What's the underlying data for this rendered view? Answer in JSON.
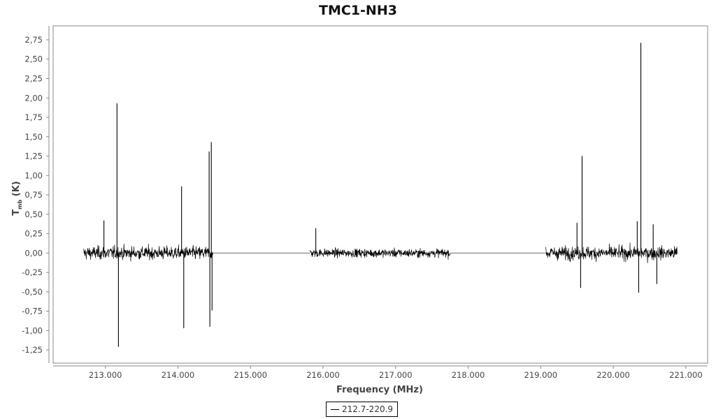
{
  "chart_data": {
    "type": "line",
    "title": "TMC1-NH3",
    "xlabel": "Frequency (MHz)",
    "ylabel_main": "T",
    "ylabel_sub": "mb",
    "ylabel_unit": " (K)",
    "xlim": [
      212.28,
      221.3
    ],
    "ylim": [
      -1.42,
      2.93
    ],
    "x_ticks": [
      213,
      214,
      215,
      216,
      217,
      218,
      219,
      220,
      221
    ],
    "x_tick_labels": [
      "213.000",
      "214.000",
      "215.000",
      "216.000",
      "217.000",
      "218.000",
      "219.000",
      "220.000",
      "221.000"
    ],
    "y_ticks": [
      -1.25,
      -1.0,
      -0.75,
      -0.5,
      -0.25,
      0,
      0.25,
      0.5,
      0.75,
      1.0,
      1.25,
      1.5,
      1.75,
      2.0,
      2.25,
      2.5,
      2.75
    ],
    "y_tick_labels": [
      "-1,25",
      "-1,00",
      "-0,75",
      "-0,50",
      "-0,25",
      "0,00",
      "0,25",
      "0,50",
      "0,75",
      "1,00",
      "1,25",
      "1,50",
      "1,75",
      "2,00",
      "2,25",
      "2,50",
      "2,75"
    ],
    "grid": false,
    "legend_position": "bottom-center",
    "color": "#000000",
    "series": [
      {
        "name": "212.7-220.9",
        "segments": [
          {
            "x_start": 212.7,
            "x_end": 214.48,
            "noise_rms": 0.11,
            "peak": 0.33
          },
          {
            "x_start": 215.82,
            "x_end": 217.75,
            "noise_rms": 0.07,
            "peak": 0.22
          },
          {
            "x_start": 219.07,
            "x_end": 220.88,
            "noise_rms": 0.11,
            "peak": 0.33
          }
        ],
        "baseline_gaps": [
          {
            "x_start": 214.48,
            "x_end": 215.82,
            "y": 0
          },
          {
            "x_start": 217.75,
            "x_end": 219.07,
            "y": 0
          }
        ],
        "spikes": [
          {
            "x": 212.98,
            "y": 0.42
          },
          {
            "x": 213.16,
            "y": 1.93
          },
          {
            "x": 213.18,
            "y": -1.21
          },
          {
            "x": 214.05,
            "y": 0.86
          },
          {
            "x": 214.08,
            "y": -0.97
          },
          {
            "x": 214.43,
            "y": 1.31
          },
          {
            "x": 214.44,
            "y": -0.95
          },
          {
            "x": 214.46,
            "y": 1.43
          },
          {
            "x": 214.47,
            "y": -0.74
          },
          {
            "x": 215.9,
            "y": 0.32
          },
          {
            "x": 219.5,
            "y": 0.39
          },
          {
            "x": 219.55,
            "y": -0.45
          },
          {
            "x": 219.57,
            "y": 1.25
          },
          {
            "x": 220.35,
            "y": -0.51
          },
          {
            "x": 220.38,
            "y": 2.71
          },
          {
            "x": 220.33,
            "y": 0.41
          },
          {
            "x": 220.55,
            "y": 0.37
          },
          {
            "x": 220.6,
            "y": -0.4
          }
        ]
      }
    ]
  }
}
